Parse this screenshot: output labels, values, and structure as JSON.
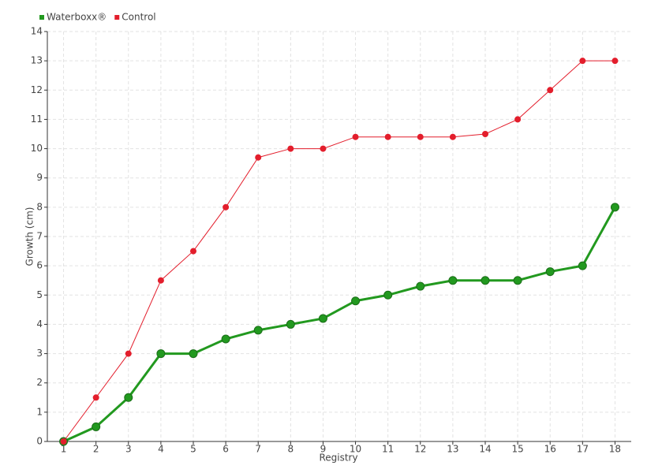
{
  "chart_data": {
    "type": "line",
    "xlabel": "Registry",
    "ylabel": "Growth (cm)",
    "categories": [
      "1",
      "2",
      "3",
      "4",
      "5",
      "6",
      "7",
      "8",
      "9",
      "10",
      "11",
      "12",
      "13",
      "14",
      "15",
      "16",
      "17",
      "18"
    ],
    "series": [
      {
        "name": "Waterboxx®",
        "color": "#22991f",
        "values": [
          0,
          0.5,
          1.5,
          3,
          3,
          3.5,
          3.8,
          4,
          4.2,
          4.8,
          5,
          5.3,
          5.5,
          5.5,
          5.5,
          5.8,
          6,
          8
        ]
      },
      {
        "name": "Control",
        "color": "#e31e2c",
        "values": [
          0,
          1.5,
          3,
          5.5,
          6.5,
          8,
          9.7,
          10,
          10,
          10.4,
          10.4,
          10.4,
          10.4,
          10.5,
          11,
          12,
          13,
          13
        ]
      }
    ],
    "ylim": [
      0,
      14
    ],
    "yticks": [
      0,
      1,
      2,
      3,
      4,
      5,
      6,
      7,
      8,
      9,
      10,
      11,
      12,
      13,
      14
    ],
    "grid": true,
    "legend": "top-left"
  }
}
